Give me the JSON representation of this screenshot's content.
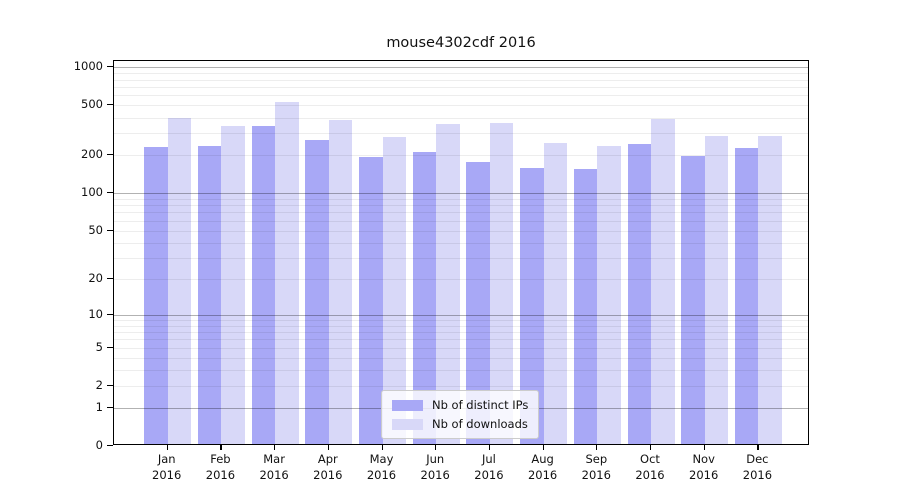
{
  "chart_data": {
    "type": "bar",
    "title": "mouse4302cdf 2016",
    "year": "2016",
    "categories": [
      "Jan",
      "Feb",
      "Mar",
      "Apr",
      "May",
      "Jun",
      "Jul",
      "Aug",
      "Sep",
      "Oct",
      "Nov",
      "Dec"
    ],
    "series": [
      {
        "name": "Nb of distinct IPs",
        "color": "#a8a8f6",
        "values": [
          228,
          234,
          340,
          262,
          193,
          211,
          176,
          157,
          153,
          242,
          196,
          227
        ]
      },
      {
        "name": "Nb of downloads",
        "color": "#d8d8f8",
        "values": [
          389,
          336,
          527,
          377,
          278,
          349,
          355,
          249,
          236,
          384,
          283,
          283
        ]
      }
    ],
    "y_axis": {
      "scale": "log1p",
      "ticks": [
        1000,
        500,
        200,
        100,
        50,
        20,
        10,
        5,
        2,
        1,
        0
      ],
      "major_gridlines": [
        1,
        10,
        100,
        1000
      ],
      "minor_gridlines": [
        2,
        3,
        4,
        5,
        6,
        7,
        8,
        9,
        20,
        30,
        40,
        50,
        60,
        70,
        80,
        90,
        200,
        300,
        400,
        500,
        600,
        700,
        800,
        900
      ],
      "ylim": [
        0,
        1130
      ]
    },
    "legend": {
      "position": "lower center"
    }
  }
}
